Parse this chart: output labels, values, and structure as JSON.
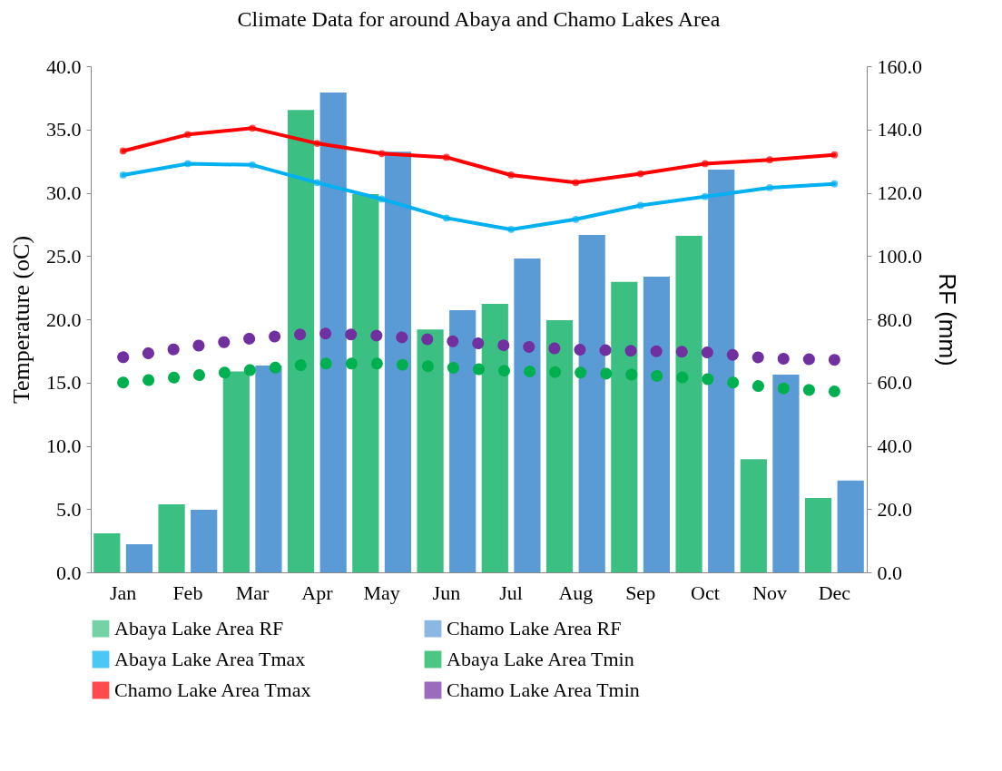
{
  "chart_data": {
    "type": "bar",
    "title": "Climate Data for around Abaya and Chamo Lakes Area",
    "ylabel": "Temperature (oC)",
    "y2label": "RF (mm)",
    "categories": [
      "Jan",
      "Feb",
      "Mar",
      "Apr",
      "May",
      "Jun",
      "Jul",
      "Aug",
      "Sep",
      "Oct",
      "Nov",
      "Dec"
    ],
    "series": [
      {
        "name": "Abaya Lake Area RF",
        "axis": "y2",
        "color": "#3cbf82",
        "values": [
          12.3,
          21.5,
          63.5,
          146.2,
          119.6,
          76.8,
          84.9,
          79.7,
          91.8,
          106.4,
          35.8,
          23.5
        ]
      },
      {
        "name": "Chamo Lake Area RF",
        "axis": "y2",
        "color": "#5b9bd5",
        "values": [
          8.9,
          19.8,
          65.4,
          151.7,
          133.0,
          82.9,
          99.2,
          106.7,
          93.5,
          127.3,
          62.5,
          29.0
        ]
      },
      {
        "name": "Abaya Lake Area Tmax",
        "type": "line",
        "marker": "circle",
        "line_style": "solid",
        "color": "#00b0f0",
        "values": [
          31.4,
          32.3,
          32.2,
          30.8,
          29.5,
          28.0,
          27.1,
          27.9,
          29.0,
          29.7,
          30.4,
          30.7
        ]
      },
      {
        "name": "Abaya Lake Area Tmin",
        "type": "line",
        "marker": "none",
        "line_style": "dotted",
        "color": "#00b050",
        "values": [
          15.0,
          15.5,
          16.0,
          16.5,
          16.5,
          16.2,
          15.9,
          15.8,
          15.6,
          15.3,
          14.6,
          14.3
        ]
      },
      {
        "name": "Chamo Lake Area Tmax",
        "type": "line",
        "marker": "circle",
        "line_style": "solid",
        "color": "#ff0000",
        "values": [
          33.3,
          34.6,
          35.1,
          33.9,
          33.1,
          32.8,
          31.4,
          30.8,
          31.5,
          32.3,
          32.6,
          33.0
        ]
      },
      {
        "name": "Chamo Lake Area Tmin",
        "type": "line",
        "marker": "none",
        "line_style": "dotted",
        "color": "#7030a0",
        "values": [
          17.0,
          17.8,
          18.5,
          18.9,
          18.7,
          18.3,
          17.9,
          17.6,
          17.5,
          17.4,
          16.9,
          16.8
        ]
      }
    ],
    "ylim": [
      0,
      40
    ],
    "yticks": [
      {
        "value": 0,
        "label": "0.0"
      },
      {
        "value": 5,
        "label": "5.0"
      },
      {
        "value": 10,
        "label": "10.0"
      },
      {
        "value": 15,
        "label": "15.0"
      },
      {
        "value": 20,
        "label": "20.0"
      },
      {
        "value": 25,
        "label": "25.0"
      },
      {
        "value": 30,
        "label": "30.0"
      },
      {
        "value": 35,
        "label": "35.0"
      },
      {
        "value": 40,
        "label": "40.0"
      }
    ],
    "y2lim": [
      0,
      160
    ],
    "y2ticks": [
      {
        "value": 0,
        "label": "0.0"
      },
      {
        "value": 20,
        "label": "20.0"
      },
      {
        "value": 40,
        "label": "40.0"
      },
      {
        "value": 60,
        "label": "60.0"
      },
      {
        "value": 80,
        "label": "80.0"
      },
      {
        "value": 100,
        "label": "100.0"
      },
      {
        "value": 120,
        "label": "120.0"
      },
      {
        "value": 140,
        "label": "140.0"
      },
      {
        "value": 160,
        "label": "160.0"
      }
    ],
    "grid": false,
    "legend": "bottom"
  }
}
